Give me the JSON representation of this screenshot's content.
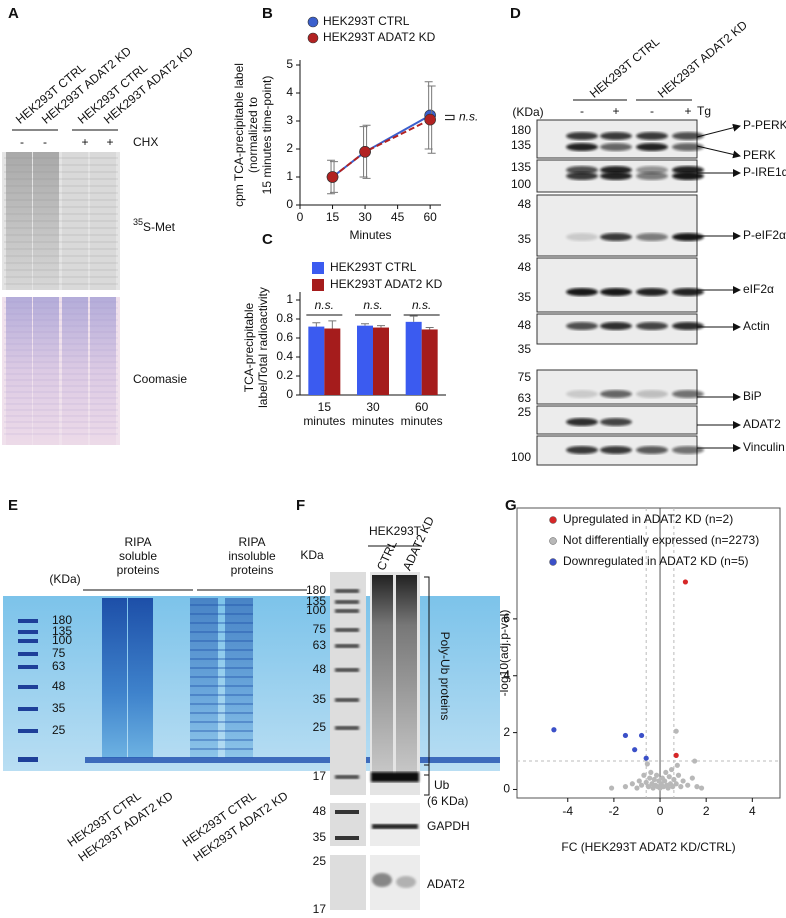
{
  "panels": {
    "A": {
      "label": "A",
      "lanes": [
        "HEK293T CTRL",
        "HEK293T ADAT2 KD",
        "HEK293T CTRL",
        "HEK293T ADAT2 KD"
      ],
      "treatment": [
        "-",
        "-",
        "+",
        "+"
      ],
      "treatment_name": "CHX",
      "probe_sup": "35",
      "probe": "S-Met",
      "stain": "Coomasie"
    },
    "D": {
      "label": "D",
      "groups": [
        "HEK293T CTRL",
        "HEK293T ADAT2 KD"
      ],
      "unit": "(KDa)",
      "treatment": [
        "-",
        "+",
        "-",
        "+"
      ],
      "treatment_name": "Tg",
      "blots": [
        {
          "markers": [
            "180",
            "135"
          ],
          "targets": [
            "P-PERK",
            "PERK"
          ]
        },
        {
          "markers": [
            "135",
            "100"
          ],
          "targets": [
            "P-IRE1α"
          ]
        },
        {
          "markers": [
            "48",
            "35"
          ],
          "targets": [
            "P-eIF2α"
          ]
        },
        {
          "markers": [
            "48",
            "35"
          ],
          "targets": [
            "eIF2α"
          ]
        },
        {
          "markers": [
            "48",
            "35"
          ],
          "targets": [
            "Actin"
          ]
        },
        {
          "markers": [
            "75",
            "63"
          ],
          "targets": [
            "BiP"
          ]
        },
        {
          "markers": [
            "25"
          ],
          "targets": [
            "ADAT2"
          ]
        },
        {
          "markers": [
            "100"
          ],
          "targets": [
            "Vinculin"
          ]
        }
      ]
    },
    "E": {
      "label": "E",
      "unit": "(KDa)",
      "markers": [
        "180",
        "135",
        "100",
        "75",
        "63",
        "48",
        "35",
        "25"
      ],
      "groups": [
        [
          "RIPA",
          "soluble",
          "proteins"
        ],
        [
          "RIPA",
          "insoluble",
          "proteins"
        ]
      ],
      "lanes": [
        "HEK293T CTRL",
        "HEK293T ADAT2 KD",
        "HEK293T CTRL",
        "HEK293T ADAT2 KD"
      ]
    },
    "F": {
      "label": "F",
      "cell_line": "HEK293T",
      "unit": "KDa",
      "lanes": [
        "CTRL",
        "ADAT2 KD"
      ],
      "markers": [
        "180",
        "135",
        "100",
        "75",
        "63",
        "48",
        "35",
        "25",
        "17"
      ],
      "polyub": "Poly-Ub proteins",
      "ub": [
        "Ub",
        "(6 KDa)"
      ],
      "gapdh_markers": [
        "48",
        "35"
      ],
      "gapdh": "GAPDH",
      "adat2_markers": [
        "25",
        "17"
      ],
      "adat2": "ADAT2"
    }
  },
  "chart_data": [
    {
      "type": "line",
      "panel": "B",
      "x": [
        15,
        30,
        60
      ],
      "x_label": "Minutes",
      "y_label": [
        "cpm TCA-precipitable label",
        "(normalized to",
        "15 minutes time-point)"
      ],
      "series": [
        {
          "name": "HEK293T CTRL",
          "color": "#3a5fcd",
          "dash": false,
          "values": [
            1,
            1.9,
            3.2
          ],
          "errors": [
            0.6,
            0.9,
            1.2
          ]
        },
        {
          "name": "HEK293T ADAT2 KD",
          "color": "#b22222",
          "dash": true,
          "values": [
            1,
            1.9,
            3.05
          ],
          "errors": [
            0.55,
            0.95,
            1.2
          ]
        }
      ],
      "xlim": [
        0,
        65
      ],
      "xticks": [
        0,
        15,
        30,
        45,
        60
      ],
      "ylim": [
        0,
        5
      ],
      "yticks": [
        0,
        1,
        2,
        3,
        4,
        5
      ],
      "annotation": "n.s."
    },
    {
      "type": "bar",
      "panel": "C",
      "categories": [
        "15 minutes",
        "30 minutes",
        "60 minutes"
      ],
      "y_label": [
        "TCA-precipitable",
        "label/Total radioactivity"
      ],
      "series": [
        {
          "name": "HEK293T CTRL",
          "color": "#3b5bf0",
          "values": [
            0.72,
            0.73,
            0.77
          ],
          "errors": [
            0.04,
            0.02,
            0.06
          ]
        },
        {
          "name": "HEK293T ADAT2 KD",
          "color": "#a51c1c",
          "values": [
            0.7,
            0.71,
            0.69
          ],
          "errors": [
            0.08,
            0.02,
            0.02
          ]
        }
      ],
      "ylim": [
        0,
        1
      ],
      "yticks": [
        0,
        0.2,
        0.4,
        0.6,
        0.8,
        1
      ],
      "annotations": [
        "n.s.",
        "n.s.",
        "n.s."
      ]
    },
    {
      "type": "scatter",
      "panel": "G",
      "x_label": "FC (HEK293T ADAT2 KD/CTRL)",
      "y_label": "-log10(adj.p-val)",
      "series": [
        {
          "name": "Upregulated in ADAT2 KD (n=2)",
          "color": "#d62728",
          "x": [
            1.1,
            0.7
          ],
          "values": [
            7.3,
            1.2
          ]
        },
        {
          "name": "Not differentially expressed (n=2273)",
          "color": "#b8b8b8",
          "x": [
            -2.1,
            -1.5,
            -1.2,
            -1.0,
            -0.9,
            -0.8,
            -0.7,
            -0.6,
            -0.5,
            -0.45,
            -0.4,
            -0.35,
            -0.3,
            -0.25,
            -0.2,
            -0.15,
            -0.1,
            -0.05,
            0,
            0.05,
            0.1,
            0.15,
            0.2,
            0.25,
            0.3,
            0.35,
            0.4,
            0.45,
            0.5,
            0.55,
            0.6,
            0.7,
            0.8,
            0.9,
            1.0,
            1.2,
            1.4,
            1.6,
            1.8,
            0.7,
            -0.55,
            0.75,
            1.5
          ],
          "values": [
            0.05,
            0.1,
            0.2,
            0.05,
            0.3,
            0.15,
            0.5,
            0.25,
            0.1,
            0.4,
            0.6,
            0.2,
            0.05,
            0.35,
            0.15,
            0.5,
            0.1,
            0.3,
            0.05,
            0.2,
            0.4,
            0.1,
            0.3,
            0.6,
            0.15,
            0.05,
            0.45,
            0.2,
            0.7,
            0.1,
            0.35,
            0.2,
            0.5,
            0.1,
            0.3,
            0.15,
            0.4,
            0.1,
            0.05,
            2.05,
            0.9,
            0.85,
            1.0
          ]
        },
        {
          "name": "Downregulated in ADAT2 KD (n=5)",
          "color": "#3b50c8",
          "x": [
            -4.6,
            -1.5,
            -0.8,
            -1.1,
            -0.6
          ],
          "values": [
            2.1,
            1.9,
            1.9,
            1.4,
            1.1
          ]
        }
      ],
      "xlim": [
        -6.2,
        5.2
      ],
      "xticks": [
        -4,
        -2,
        0,
        2,
        4
      ],
      "ylim": [
        -0.3,
        9.9
      ],
      "yticks": [
        0,
        2,
        4,
        6
      ],
      "threshold_x": [
        -0.6,
        0.6
      ],
      "threshold_y": [
        1
      ]
    }
  ]
}
